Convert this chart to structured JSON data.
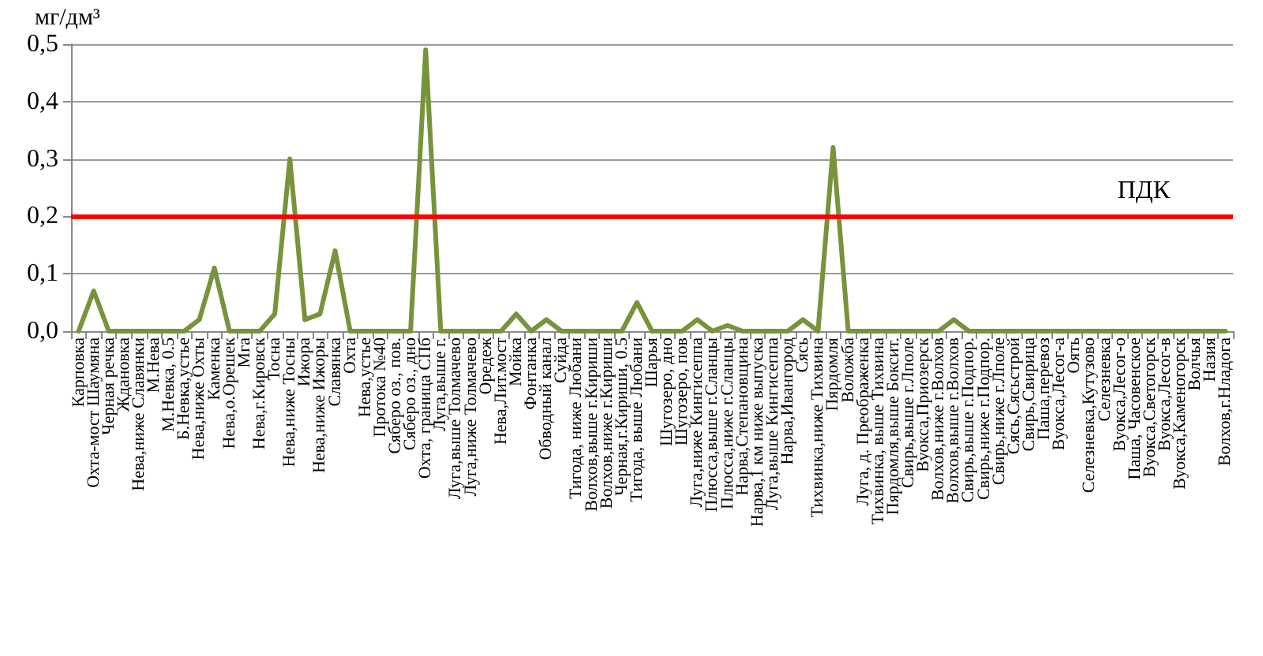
{
  "chart_data": {
    "type": "line",
    "ylabel": "мг/дм³",
    "categories": [
      "Карповка",
      "Охта-мост Шаумяна",
      "Черная речка",
      "Ждановка",
      "Нева,ниже Славянки",
      "М.Нева",
      "М.Невка, 0.5",
      "Б.Невка,устье",
      "Нева,ниже Охты",
      "Каменка",
      "Нева,о.Орешек",
      "Мга",
      "Нева,г.Кировск",
      "Тосна",
      "Нева,ниже Тосны",
      "Ижора",
      "Нева,ниже Ижоры",
      "Славянка",
      "Охта",
      "Нева,устье",
      "Протока №40",
      "Сяберо оз., пов.",
      "Сяберо оз., дно",
      "Охта, граница СПб",
      "Луга,выше г.",
      "Луга,выше Толмачево",
      "Луга,ниже Толмачево",
      "Оредеж",
      "Нева,Лит.мост",
      "Мойка",
      "Фонтанка",
      "Обводный канал",
      "Суйда",
      "Тигода, ниже Любани",
      "Волхов,выше г.Кириши",
      "Волхов,ниже г.Кириши",
      "Черная,г.Кириши, 0.5",
      "Тигода, выше Любани",
      "Шарья",
      "Шугозеро, дно",
      "Шугозеро, пов",
      "Луга,ниже Кингисеппа",
      "Плюсса,выше г.Сланцы",
      "Плюсса,ниже г.Сланцы",
      "Нарва,Степановщина",
      "Нарва,1 км ниже выпуска",
      "Луга,выше Кингисеппа",
      "Нарва,Ивангород",
      "Сясь",
      "Тихвинка,ниже Тихвина",
      "Пярдомля",
      "Воложба",
      "Луга, д. Преображенка",
      "Тихвинка, выше Тихвина",
      "Пярдомля,выше Боксит.",
      "Свирь,выше г.Лполе",
      "Вуокса,Приозерск",
      "Волхов,ниже г.Волхов",
      "Волхов,выше г.Волхов",
      "Свирь,выше г.Подпор.",
      "Свирь,ниже г.Подпор.",
      "Свирь,ниже г.Лполе",
      "Сясь,Сясьстрой",
      "Свирь,Свирица",
      "Паша,перевоз",
      "Вуокса,Лесог-а",
      "Оять",
      "Селезневка,Кутузово",
      "Селезневка",
      "Вуокса,Лесог-о",
      "Паша, Часовенское",
      "Вуокса,Светогорск",
      "Вуокса,Лесог-в",
      "Вуокса,Каменогорск",
      "Волчья",
      "Назия",
      "Волхов,г.Нладога"
    ],
    "series": [
      {
        "color": "#77933c",
        "values": [
          0,
          0.07,
          0,
          0,
          0,
          0,
          0,
          0,
          0.02,
          0.11,
          0,
          0,
          0,
          0.03,
          0.3,
          0.02,
          0.03,
          0.14,
          0,
          0,
          0,
          0,
          0,
          0.49,
          0,
          0,
          0,
          0,
          0,
          0.03,
          0,
          0.02,
          0,
          0,
          0,
          0,
          0,
          0.05,
          0,
          0,
          0,
          0.02,
          0,
          0.01,
          0,
          0,
          0,
          0,
          0.02,
          0,
          0.32,
          0,
          0,
          0,
          0,
          0,
          0,
          0,
          0.02,
          0,
          0,
          0,
          0,
          0,
          0,
          0,
          0,
          0,
          0,
          0,
          0,
          0,
          0,
          0,
          0,
          0,
          0
        ]
      }
    ],
    "ylim": [
      0,
      0.5
    ],
    "yticks": [
      {
        "value": 0,
        "label": "0,0"
      },
      {
        "value": 0.1,
        "label": "0,1"
      },
      {
        "value": 0.2,
        "label": "0,2"
      },
      {
        "value": 0.3,
        "label": "0,3"
      },
      {
        "value": 0.4,
        "label": "0,4"
      },
      {
        "value": 0.5,
        "label": "0,5"
      }
    ],
    "grid": "y",
    "marker": "none",
    "line_style": "solid",
    "ref_lines": [
      {
        "axis": "y",
        "value": 0.2,
        "label": "ПДК",
        "color": "#ff0000"
      }
    ]
  }
}
